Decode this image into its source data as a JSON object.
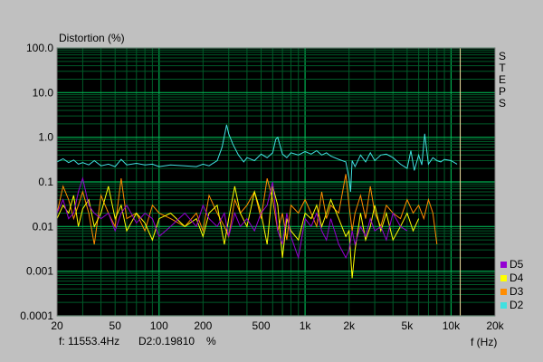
{
  "chart_data": {
    "type": "line",
    "title": "",
    "ylabel": "Distortion (%)",
    "xlabel": "f (Hz)",
    "x_scale": "log",
    "y_scale": "log",
    "xlim": [
      20,
      20000
    ],
    "ylim": [
      0.0001,
      100
    ],
    "grid": true,
    "x_tick_labels": [
      {
        "value": 20,
        "label": "20"
      },
      {
        "value": 50,
        "label": "50"
      },
      {
        "value": 100,
        "label": "100"
      },
      {
        "value": 200,
        "label": "200"
      },
      {
        "value": 500,
        "label": "500"
      },
      {
        "value": 1000,
        "label": "1k"
      },
      {
        "value": 2000,
        "label": "2k"
      },
      {
        "value": 5000,
        "label": "5k"
      },
      {
        "value": 10000,
        "label": "10k"
      },
      {
        "value": 20000,
        "label": "20k"
      }
    ],
    "y_tick_labels": [
      {
        "value": 100,
        "label": "100.0"
      },
      {
        "value": 10,
        "label": "10.0"
      },
      {
        "value": 1,
        "label": "1.0"
      },
      {
        "value": 0.1,
        "label": "0.1"
      },
      {
        "value": 0.01,
        "label": "0.01"
      },
      {
        "value": 0.001,
        "label": "0.001"
      },
      {
        "value": 0.0001,
        "label": "0.0001"
      }
    ],
    "side_label": "STEPS",
    "cursor": {
      "x": 11553.4
    },
    "legend_position": "bottom-right",
    "series": [
      {
        "name": "D2",
        "color": "#40e0e0",
        "x": [
          20,
          22,
          24,
          26,
          28,
          30,
          33,
          36,
          40,
          45,
          50,
          55,
          60,
          70,
          80,
          90,
          100,
          120,
          150,
          180,
          200,
          220,
          250,
          270,
          290,
          300,
          320,
          350,
          380,
          400,
          450,
          500,
          550,
          600,
          630,
          650,
          700,
          750,
          800,
          900,
          1000,
          1100,
          1200,
          1300,
          1400,
          1500,
          1700,
          1900,
          2000,
          2050,
          2100,
          2200,
          2400,
          2600,
          2800,
          3000,
          3300,
          3600,
          4000,
          4500,
          5000,
          5300,
          5600,
          6000,
          6300,
          6600,
          7000,
          7500,
          8000,
          8500,
          9000,
          10000,
          11000
        ],
        "y": [
          0.28,
          0.33,
          0.27,
          0.31,
          0.25,
          0.27,
          0.24,
          0.3,
          0.23,
          0.25,
          0.22,
          0.32,
          0.24,
          0.26,
          0.24,
          0.25,
          0.22,
          0.24,
          0.23,
          0.22,
          0.25,
          0.23,
          0.3,
          0.6,
          1.9,
          1.2,
          0.7,
          0.4,
          0.28,
          0.35,
          0.3,
          0.42,
          0.35,
          0.45,
          0.9,
          1.0,
          0.42,
          0.35,
          0.45,
          0.4,
          0.48,
          0.42,
          0.5,
          0.4,
          0.45,
          0.38,
          0.32,
          0.28,
          0.12,
          0.06,
          0.3,
          0.22,
          0.4,
          0.28,
          0.45,
          0.3,
          0.4,
          0.42,
          0.35,
          0.25,
          0.2,
          0.5,
          0.18,
          0.4,
          0.24,
          1.2,
          0.25,
          0.35,
          0.3,
          0.28,
          0.32,
          0.3,
          0.25
        ]
      },
      {
        "name": "D3",
        "color": "#ff8c00",
        "x": [
          20,
          22,
          24,
          26,
          28,
          30,
          33,
          36,
          40,
          45,
          50,
          55,
          60,
          70,
          80,
          90,
          100,
          120,
          150,
          180,
          200,
          220,
          250,
          280,
          300,
          330,
          360,
          400,
          450,
          500,
          550,
          600,
          650,
          700,
          750,
          800,
          900,
          1000,
          1100,
          1200,
          1300,
          1400,
          1500,
          1700,
          1900,
          2000,
          2100,
          2200,
          2400,
          2600,
          2800,
          3000,
          3300,
          3600,
          4000,
          4500,
          5000,
          5500,
          6000,
          6500,
          7000,
          7500,
          8000
        ],
        "y": [
          0.02,
          0.08,
          0.04,
          0.015,
          0.03,
          0.06,
          0.02,
          0.004,
          0.05,
          0.02,
          0.01,
          0.12,
          0.015,
          0.02,
          0.008,
          0.03,
          0.02,
          0.015,
          0.01,
          0.02,
          0.008,
          0.05,
          0.02,
          0.01,
          0.006,
          0.04,
          0.02,
          0.03,
          0.06,
          0.015,
          0.12,
          0.04,
          0.008,
          0.02,
          0.005,
          0.03,
          0.02,
          0.04,
          0.02,
          0.01,
          0.06,
          0.015,
          0.03,
          0.02,
          0.15,
          0.03,
          0.008,
          0.02,
          0.05,
          0.015,
          0.08,
          0.02,
          0.01,
          0.03,
          0.02,
          0.015,
          0.04,
          0.02,
          0.03,
          0.015,
          0.04,
          0.02,
          0.004
        ]
      },
      {
        "name": "D4",
        "color": "#ffff00",
        "x": [
          20,
          22,
          24,
          26,
          28,
          30,
          33,
          36,
          40,
          45,
          50,
          55,
          60,
          70,
          80,
          90,
          100,
          120,
          150,
          180,
          200,
          220,
          250,
          280,
          300,
          330,
          360,
          400,
          450,
          500,
          550,
          600,
          650,
          700,
          750,
          800,
          900,
          1000,
          1100,
          1200,
          1300,
          1400,
          1500,
          1700,
          1900,
          2000,
          2100,
          2200,
          2400,
          2600,
          2800,
          3000,
          3300,
          3600,
          4000,
          4500,
          5000,
          5500,
          6000
        ],
        "y": [
          0.015,
          0.03,
          0.02,
          0.05,
          0.01,
          0.025,
          0.04,
          0.01,
          0.02,
          0.08,
          0.015,
          0.03,
          0.008,
          0.02,
          0.012,
          0.005,
          0.015,
          0.02,
          0.01,
          0.015,
          0.006,
          0.02,
          0.03,
          0.004,
          0.015,
          0.08,
          0.02,
          0.01,
          0.06,
          0.02,
          0.004,
          0.08,
          0.03,
          0.002,
          0.015,
          0.008,
          0.005,
          0.02,
          0.015,
          0.03,
          0.01,
          0.02,
          0.04,
          0.015,
          0.006,
          0.008,
          0.0007,
          0.003,
          0.02,
          0.005,
          0.01,
          0.03,
          0.008,
          0.02,
          0.005,
          0.01,
          0.02,
          0.008,
          0.015
        ]
      },
      {
        "name": "D5",
        "color": "#9400d3",
        "x": [
          20,
          22,
          24,
          26,
          28,
          30,
          33,
          36,
          40,
          45,
          50,
          55,
          60,
          70,
          80,
          90,
          100,
          120,
          150,
          180,
          200,
          220,
          250,
          280,
          300,
          330,
          360,
          400,
          450,
          500,
          550,
          600,
          650,
          700,
          750,
          800,
          900,
          1000,
          1100,
          1200,
          1300,
          1400,
          1500,
          1700,
          1900,
          2000,
          2100,
          2200,
          2400,
          2600,
          2800,
          3000,
          3300,
          3600,
          4000,
          4500,
          5000
        ],
        "y": [
          0.02,
          0.04,
          0.015,
          0.02,
          0.06,
          0.12,
          0.03,
          0.02,
          0.015,
          0.02,
          0.008,
          0.02,
          0.03,
          0.012,
          0.02,
          0.015,
          0.006,
          0.01,
          0.02,
          0.01,
          0.03,
          0.015,
          0.01,
          0.02,
          0.006,
          0.02,
          0.01,
          0.015,
          0.008,
          0.02,
          0.03,
          0.1,
          0.008,
          0.004,
          0.02,
          0.006,
          0.002,
          0.015,
          0.01,
          0.02,
          0.008,
          0.005,
          0.015,
          0.004,
          0.002,
          0.003,
          0.008,
          0.004,
          0.01,
          0.006,
          0.015,
          0.008,
          0.01,
          0.005,
          0.02,
          0.01,
          0.008
        ]
      }
    ]
  },
  "readout": {
    "freq": "f: 11553.4Hz",
    "value": "D2:0.19810",
    "unit": "%"
  }
}
